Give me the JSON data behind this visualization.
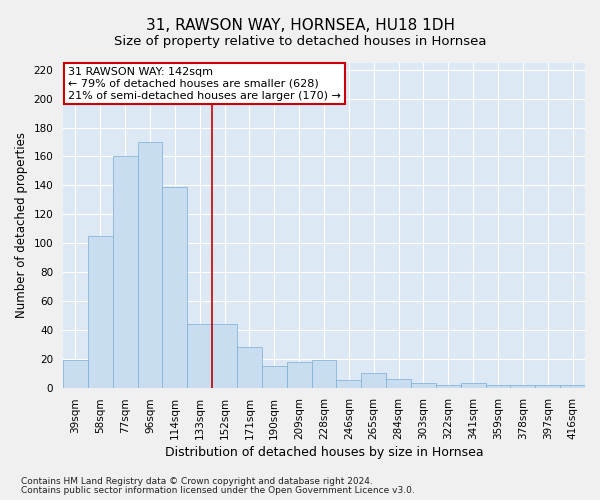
{
  "title": "31, RAWSON WAY, HORNSEA, HU18 1DH",
  "subtitle": "Size of property relative to detached houses in Hornsea",
  "xlabel": "Distribution of detached houses by size in Hornsea",
  "ylabel": "Number of detached properties",
  "categories": [
    "39sqm",
    "58sqm",
    "77sqm",
    "96sqm",
    "114sqm",
    "133sqm",
    "152sqm",
    "171sqm",
    "190sqm",
    "209sqm",
    "228sqm",
    "246sqm",
    "265sqm",
    "284sqm",
    "303sqm",
    "322sqm",
    "341sqm",
    "359sqm",
    "378sqm",
    "397sqm",
    "416sqm"
  ],
  "values": [
    19,
    105,
    160,
    170,
    139,
    44,
    44,
    28,
    15,
    18,
    19,
    5,
    10,
    6,
    3,
    2,
    3,
    2,
    2,
    2,
    2
  ],
  "bar_color": "#c9ddf0",
  "bar_edge_color": "#7aadd4",
  "background_color": "#dde8f5",
  "grid_color": "#ffffff",
  "annotation_line1": "31 RAWSON WAY: 142sqm",
  "annotation_line2": "← 79% of detached houses are smaller (628)",
  "annotation_line3": "21% of semi-detached houses are larger (170) →",
  "annotation_box_facecolor": "#ffffff",
  "annotation_box_edgecolor": "#cc0000",
  "vline_color": "#cc0000",
  "vline_x": 5.5,
  "ylim": [
    0,
    225
  ],
  "yticks": [
    0,
    20,
    40,
    60,
    80,
    100,
    120,
    140,
    160,
    180,
    200,
    220
  ],
  "footer_line1": "Contains HM Land Registry data © Crown copyright and database right 2024.",
  "footer_line2": "Contains public sector information licensed under the Open Government Licence v3.0.",
  "title_fontsize": 11,
  "subtitle_fontsize": 9.5,
  "xlabel_fontsize": 9,
  "ylabel_fontsize": 8.5,
  "tick_fontsize": 7.5,
  "annotation_fontsize": 8,
  "footer_fontsize": 6.5
}
